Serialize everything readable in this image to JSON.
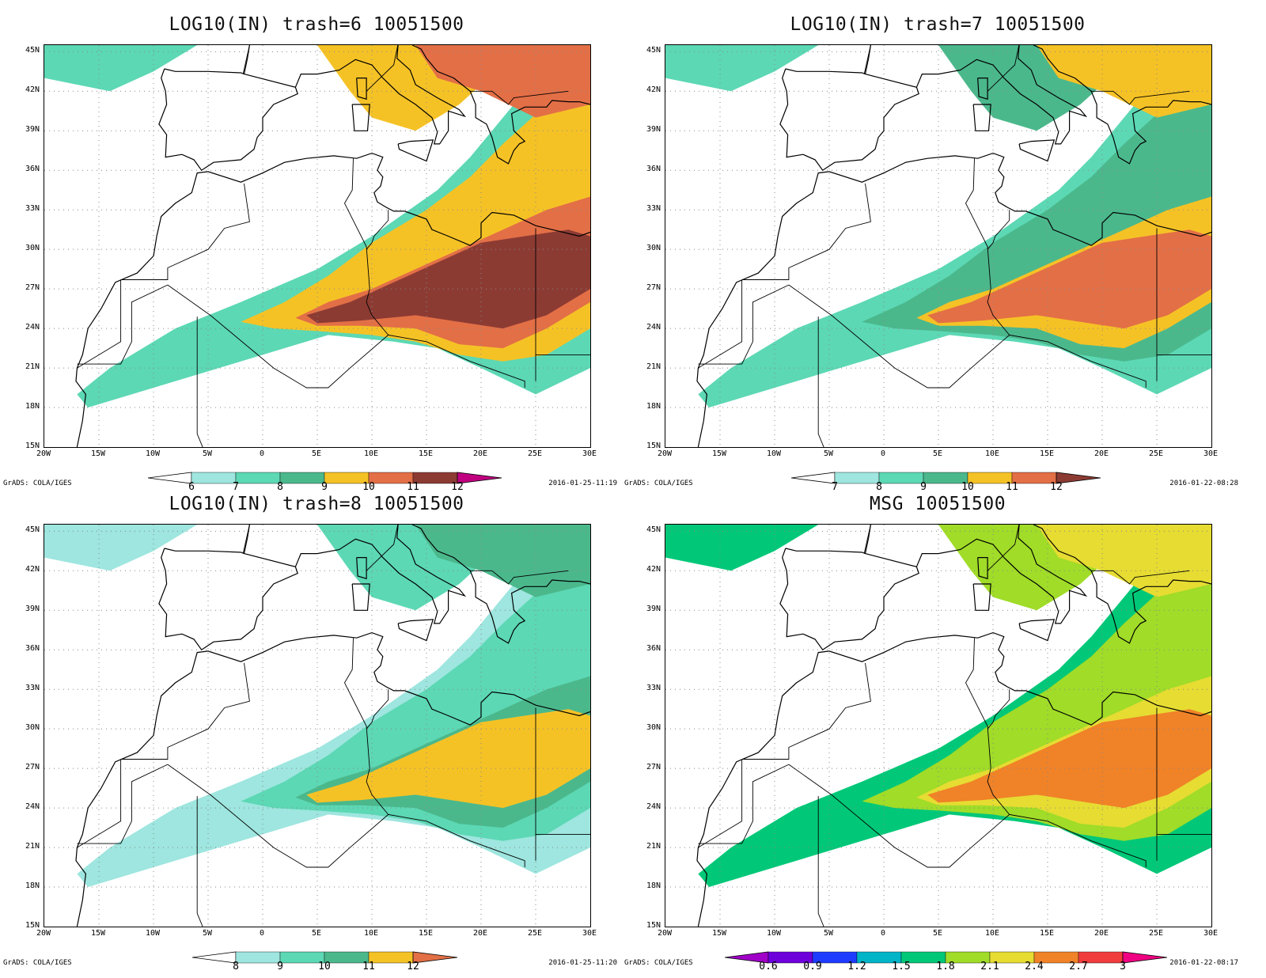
{
  "panels": [
    {
      "title": "LOG10(IN) trash=6 10051500",
      "credit": "GrADS: COLA/IGES",
      "timestamp": "2016-01-25-11:19",
      "colorbar": {
        "labels": [
          "6",
          "7",
          "8",
          "9",
          "10",
          "11",
          "12"
        ],
        "colors": [
          "#ffffff",
          "#9ee6df",
          "#5cd8b4",
          "#4bb88c",
          "#f5c226",
          "#e36f46",
          "#8c3b33",
          "#c00080"
        ]
      },
      "fields": [
        {
          "color": "#5cd8b4",
          "shape": "plume-outer"
        },
        {
          "color": "#f5c226",
          "shape": "plume-mid"
        },
        {
          "color": "#e36f46",
          "shape": "plume-core"
        },
        {
          "color": "#8c3b33",
          "shape": "plume-peak"
        }
      ]
    },
    {
      "title": "LOG10(IN) trash=7 10051500",
      "credit": "GrADS: COLA/IGES",
      "timestamp": "2016-01-22-08:28",
      "colorbar": {
        "labels": [
          "7",
          "8",
          "9",
          "10",
          "11",
          "12"
        ],
        "colors": [
          "#ffffff",
          "#9ee6df",
          "#5cd8b4",
          "#4bb88c",
          "#f5c226",
          "#e36f46",
          "#8c3b33"
        ]
      },
      "fields": [
        {
          "color": "#5cd8b4",
          "shape": "plume-outer"
        },
        {
          "color": "#4bb88c",
          "shape": "plume-mid"
        },
        {
          "color": "#f5c226",
          "shape": "plume-core"
        },
        {
          "color": "#e36f46",
          "shape": "plume-peak"
        }
      ]
    },
    {
      "title": "LOG10(IN) trash=8 10051500",
      "credit": "GrADS: COLA/IGES",
      "timestamp": "2016-01-25-11:20",
      "colorbar": {
        "labels": [
          "8",
          "9",
          "10",
          "11",
          "12"
        ],
        "colors": [
          "#ffffff",
          "#9ee6df",
          "#5cd8b4",
          "#4bb88c",
          "#f5c226",
          "#e36f46"
        ]
      },
      "fields": [
        {
          "color": "#9ee6df",
          "shape": "plume-outer"
        },
        {
          "color": "#5cd8b4",
          "shape": "plume-mid"
        },
        {
          "color": "#4bb88c",
          "shape": "plume-core"
        },
        {
          "color": "#f5c226",
          "shape": "plume-peak"
        }
      ]
    },
    {
      "title": "MSG 10051500",
      "credit": "GrADS: COLA/IGES",
      "timestamp": "2016-01-22-08:17",
      "colorbar": {
        "labels": [
          "0.6",
          "0.9",
          "1.2",
          "1.5",
          "1.8",
          "2.1",
          "2.4",
          "2.7",
          "3"
        ],
        "colors": [
          "#a000c8",
          "#6e00dc",
          "#1e3cff",
          "#00b4c8",
          "#00c878",
          "#a0dc28",
          "#e6dc32",
          "#f08228",
          "#f03c3c",
          "#f00082"
        ]
      },
      "fields": [
        {
          "color": "#00c878",
          "shape": "plume-outer"
        },
        {
          "color": "#a0dc28",
          "shape": "plume-mid"
        },
        {
          "color": "#e6dc32",
          "shape": "plume-core"
        },
        {
          "color": "#f08228",
          "shape": "plume-peak"
        }
      ]
    }
  ],
  "axes": {
    "lat_labels": [
      "45N",
      "42N",
      "39N",
      "36N",
      "33N",
      "30N",
      "27N",
      "24N",
      "21N",
      "18N",
      "15N"
    ],
    "lon_labels": [
      "20W",
      "15W",
      "10W",
      "5W",
      "0",
      "5E",
      "10E",
      "15E",
      "20E",
      "25E",
      "30E"
    ]
  }
}
